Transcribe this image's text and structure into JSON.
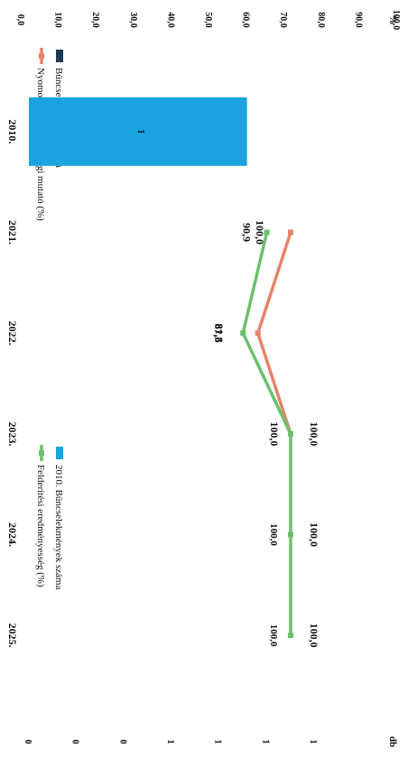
{
  "chart_data": {
    "type": "bar",
    "title": "",
    "left_axis_unit": "db",
    "right_axis_unit": "%",
    "categories": [
      "2010.",
      "2021.",
      "2022.",
      "2023.",
      "2024.",
      "2025."
    ],
    "left_ticks": [
      "0",
      "0",
      "0",
      "1",
      "1",
      "1",
      "1"
    ],
    "right_ticks": [
      "0,0",
      "10,0",
      "20,0",
      "30,0",
      "40,0",
      "50,0",
      "60,0",
      "70,0",
      "80,0",
      "90,0",
      "100,0"
    ],
    "ylim_left": [
      0,
      1.2
    ],
    "ylim_right": [
      0,
      100
    ],
    "series": [
      {
        "name": "Bűncselekmények száma",
        "kind": "bar",
        "color": "#1c3a57",
        "values": [
          null,
          null,
          null,
          null,
          null,
          null
        ]
      },
      {
        "name": "2010. Bűncselekmények száma",
        "kind": "bar",
        "color": "#1aa3e0",
        "values": [
          1,
          null,
          null,
          null,
          null,
          null
        ],
        "labels": [
          "1",
          "",
          "",
          "",
          "",
          ""
        ]
      },
      {
        "name": "Nyomozáseredményességi mutató (%)",
        "kind": "line",
        "axis": "right",
        "color": "#e8826a",
        "values": [
          null,
          100.0,
          87.5,
          100.0,
          null,
          null
        ],
        "labels": [
          "",
          "100,0",
          "87,5",
          "100,0",
          "",
          ""
        ]
      },
      {
        "name": "Felderítési eredményesség (%)",
        "kind": "line",
        "axis": "right",
        "color": "#6cc06c",
        "values": [
          null,
          90.9,
          81.8,
          100.0,
          100.0,
          100.0
        ],
        "labels": [
          "",
          "90,9",
          "81,8",
          "100,0",
          "100,0",
          "100,0"
        ]
      }
    ],
    "legend_position": "top"
  }
}
